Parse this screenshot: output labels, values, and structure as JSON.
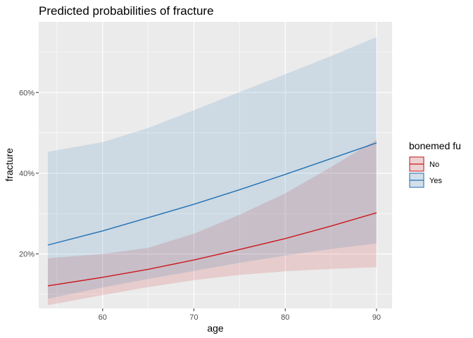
{
  "chart_data": {
    "type": "line",
    "title": "Predicted probabilities of fracture",
    "xlabel": "age",
    "ylabel": "fracture",
    "xlim": [
      53,
      91.7
    ],
    "ylim": [
      0.065,
      0.775
    ],
    "x_ticks": [
      60,
      70,
      80,
      90
    ],
    "y_ticks": [
      0.2,
      0.4,
      0.6
    ],
    "y_tick_labels": [
      "20%",
      "40%",
      "60%"
    ],
    "grid": true,
    "legend": {
      "title": "bonemed fu",
      "position": "right"
    },
    "x": [
      54,
      60,
      65,
      70,
      75,
      80,
      85,
      90
    ],
    "series": [
      {
        "name": "No",
        "color": "#cb181d",
        "values": [
          0.121,
          0.142,
          0.162,
          0.185,
          0.211,
          0.238,
          0.269,
          0.302
        ],
        "lower": [
          0.073,
          0.098,
          0.118,
          0.135,
          0.148,
          0.157,
          0.163,
          0.167
        ],
        "upper": [
          0.189,
          0.2,
          0.215,
          0.25,
          0.297,
          0.35,
          0.415,
          0.483
        ]
      },
      {
        "name": "Yes",
        "color": "#2171b5",
        "values": [
          0.222,
          0.257,
          0.29,
          0.323,
          0.359,
          0.397,
          0.436,
          0.475
        ],
        "lower": [
          0.089,
          0.117,
          0.138,
          0.158,
          0.178,
          0.196,
          0.212,
          0.226
        ],
        "upper": [
          0.453,
          0.477,
          0.512,
          0.556,
          0.601,
          0.645,
          0.69,
          0.737
        ]
      }
    ]
  }
}
